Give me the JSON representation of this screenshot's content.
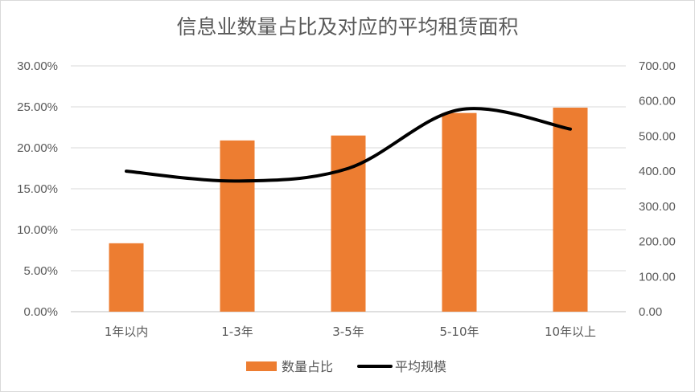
{
  "chart_data": {
    "type": "bar",
    "title": "信息业数量占比及对应的平均租赁面积",
    "categories": [
      "1年以内",
      "1-3年",
      "3-5年",
      "5-10年",
      "10年以上"
    ],
    "series": [
      {
        "name": "数量占比",
        "type": "bar",
        "axis": "left",
        "color": "#ED7D31",
        "values": [
          0.0835,
          0.209,
          0.215,
          0.2425,
          0.249
        ]
      },
      {
        "name": "平均规模",
        "type": "line",
        "smooth": true,
        "axis": "right",
        "color": "#000000",
        "values": [
          400,
          372,
          408,
          575,
          520
        ]
      }
    ],
    "y_left": {
      "min": 0,
      "max": 0.3,
      "ticks": [
        "0.00%",
        "5.00%",
        "10.00%",
        "15.00%",
        "20.00%",
        "25.00%",
        "30.00%"
      ]
    },
    "y_right": {
      "min": 0,
      "max": 700,
      "ticks": [
        "0.00",
        "100.00",
        "200.00",
        "300.00",
        "400.00",
        "500.00",
        "600.00",
        "700.00"
      ]
    },
    "grid": true,
    "legend": "bottom"
  }
}
